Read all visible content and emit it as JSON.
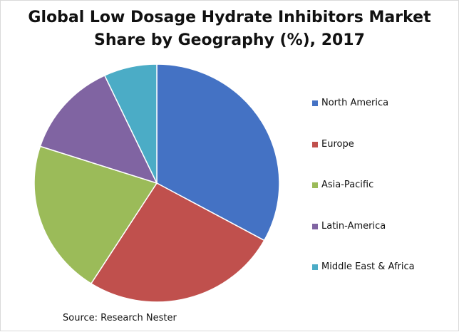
{
  "chart_data": {
    "type": "pie",
    "title": "Global Low Dosage Hydrate Inhibitors  Market Share by Geography (%), 2017",
    "categories": [
      "North America",
      "Europe",
      "Asia-Pacific",
      "Latin-America",
      "Middle East & Africa"
    ],
    "values": [
      33,
      26,
      21,
      13,
      7
    ],
    "colors": [
      "#4472c4",
      "#c0504d",
      "#9bbb59",
      "#8064a2",
      "#4bacc6"
    ],
    "legend_position": "right",
    "source": "Source: Research Nester"
  }
}
